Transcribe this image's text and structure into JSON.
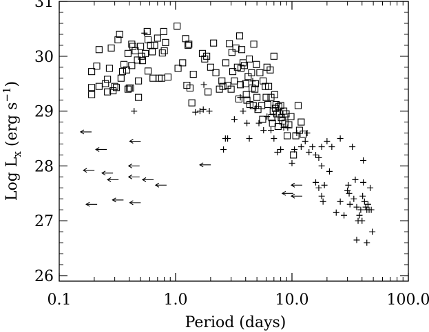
{
  "chart_data": {
    "type": "scatter",
    "title": "",
    "xlabel": "Period (days)",
    "ylabel_parts": {
      "main": "Log L",
      "sub": "x",
      "paren_open": " (erg s",
      "sup": "−1",
      "paren_close": ")"
    },
    "xscale": "log",
    "xlim": [
      0.1,
      100
    ],
    "ylim": [
      25.9,
      31.0
    ],
    "grid": false,
    "legend": "none",
    "xticks": [
      {
        "value": 0.1,
        "label": "0.1"
      },
      {
        "value": 1,
        "label": "1.0"
      },
      {
        "value": 10,
        "label": "10.0"
      },
      {
        "value": 100,
        "label": "100.0"
      }
    ],
    "yticks": [
      {
        "value": 26,
        "label": "26"
      },
      {
        "value": 27,
        "label": "27"
      },
      {
        "value": 28,
        "label": "28"
      },
      {
        "value": 29,
        "label": "29"
      },
      {
        "value": 30,
        "label": "30"
      },
      {
        "value": 31,
        "label": "31"
      }
    ],
    "series": [
      {
        "marker": "square",
        "points": [
          [
            0.19,
            29.43
          ],
          [
            0.19,
            29.72
          ],
          [
            0.19,
            29.3
          ],
          [
            0.21,
            29.82
          ],
          [
            0.22,
            30.12
          ],
          [
            0.22,
            29.45
          ],
          [
            0.25,
            29.5
          ],
          [
            0.26,
            29.35
          ],
          [
            0.26,
            29.58
          ],
          [
            0.27,
            29.78
          ],
          [
            0.28,
            30.15
          ],
          [
            0.29,
            29.37
          ],
          [
            0.3,
            29.45
          ],
          [
            0.31,
            29.43
          ],
          [
            0.32,
            30.3
          ],
          [
            0.33,
            30.4
          ],
          [
            0.34,
            29.6
          ],
          [
            0.35,
            29.72
          ],
          [
            0.36,
            29.85
          ],
          [
            0.38,
            29.75
          ],
          [
            0.39,
            30.05
          ],
          [
            0.39,
            29.4
          ],
          [
            0.4,
            29.42
          ],
          [
            0.41,
            29.42
          ],
          [
            0.42,
            29.83
          ],
          [
            0.42,
            30.22
          ],
          [
            0.43,
            30.18
          ],
          [
            0.45,
            30.1
          ],
          [
            0.47,
            29.93
          ],
          [
            0.48,
            29.25
          ],
          [
            0.48,
            29.55
          ],
          [
            0.5,
            30.18
          ],
          [
            0.51,
            30.0
          ],
          [
            0.52,
            29.92
          ],
          [
            0.55,
            30.05
          ],
          [
            0.57,
            30.45
          ],
          [
            0.58,
            30.3
          ],
          [
            0.58,
            29.73
          ],
          [
            0.61,
            30.2
          ],
          [
            0.63,
            30.08
          ],
          [
            0.64,
            29.6
          ],
          [
            0.66,
            30.2
          ],
          [
            0.7,
            30.33
          ],
          [
            0.72,
            29.6
          ],
          [
            0.76,
            29.6
          ],
          [
            0.77,
            30.06
          ],
          [
            0.79,
            30.45
          ],
          [
            0.8,
            30.1
          ],
          [
            0.82,
            30.25
          ],
          [
            0.86,
            29.62
          ],
          [
            1.03,
            30.55
          ],
          [
            1.05,
            29.78
          ],
          [
            1.15,
            29.88
          ],
          [
            1.22,
            30.32
          ],
          [
            1.25,
            29.47
          ],
          [
            1.28,
            30.2
          ],
          [
            1.3,
            30.22
          ],
          [
            1.33,
            29.42
          ],
          [
            1.38,
            29.15
          ],
          [
            1.42,
            29.67
          ],
          [
            1.7,
            30.05
          ],
          [
            1.78,
            29.95
          ],
          [
            1.85,
            30.0
          ],
          [
            1.9,
            29.35
          ],
          [
            2.0,
            29.8
          ],
          [
            2.12,
            30.24
          ],
          [
            2.22,
            29.7
          ],
          [
            2.38,
            29.4
          ],
          [
            2.5,
            29.55
          ],
          [
            2.55,
            29.45
          ],
          [
            2.7,
            29.88
          ],
          [
            2.8,
            29.47
          ],
          [
            2.9,
            30.23
          ],
          [
            3.0,
            29.4
          ],
          [
            3.05,
            30.07
          ],
          [
            3.1,
            29.72
          ],
          [
            3.2,
            29.55
          ],
          [
            3.3,
            30.15
          ],
          [
            3.4,
            29.8
          ],
          [
            3.5,
            29.22
          ],
          [
            3.55,
            30.37
          ],
          [
            3.6,
            29.48
          ],
          [
            3.65,
            29.78
          ],
          [
            3.7,
            30.12
          ],
          [
            3.8,
            29.88
          ],
          [
            3.9,
            29.83
          ],
          [
            4.0,
            29.5
          ],
          [
            4.05,
            29.3
          ],
          [
            4.1,
            29.2
          ],
          [
            4.2,
            29.63
          ],
          [
            4.3,
            29.95
          ],
          [
            4.35,
            29.12
          ],
          [
            4.5,
            29.7
          ],
          [
            4.55,
            29.42
          ],
          [
            4.65,
            29.1
          ],
          [
            4.7,
            30.22
          ],
          [
            4.8,
            29.4
          ],
          [
            4.85,
            29.5
          ],
          [
            4.95,
            29.85
          ],
          [
            5.0,
            29.25
          ],
          [
            5.1,
            29.03
          ],
          [
            5.3,
            29.7
          ],
          [
            5.5,
            29.1
          ],
          [
            5.6,
            28.85
          ],
          [
            5.65,
            29.55
          ],
          [
            5.9,
            29.45
          ],
          [
            6.0,
            29.25
          ],
          [
            6.1,
            29.8
          ],
          [
            6.2,
            29.12
          ],
          [
            6.3,
            29.45
          ],
          [
            6.5,
            29.75
          ],
          [
            6.6,
            29.25
          ],
          [
            6.7,
            28.88
          ],
          [
            6.8,
            28.78
          ],
          [
            6.9,
            29.0
          ],
          [
            7.0,
            30.0
          ],
          [
            7.1,
            29.3
          ],
          [
            7.2,
            29.05
          ],
          [
            7.3,
            29.12
          ],
          [
            7.4,
            28.95
          ],
          [
            7.6,
            28.72
          ],
          [
            7.7,
            29.08
          ],
          [
            7.8,
            28.95
          ],
          [
            8.0,
            29.1
          ],
          [
            8.1,
            28.88
          ],
          [
            8.3,
            28.82
          ],
          [
            8.5,
            29.0
          ],
          [
            8.7,
            28.78
          ],
          [
            8.9,
            28.95
          ],
          [
            9.1,
            28.55
          ],
          [
            9.4,
            28.75
          ],
          [
            9.8,
            28.9
          ],
          [
            10.3,
            28.2
          ],
          [
            10.8,
            28.55
          ],
          [
            11.3,
            29.1
          ],
          [
            11.6,
            28.65
          ],
          [
            12.0,
            28.8
          ],
          [
            12.5,
            28.58
          ]
        ]
      },
      {
        "marker": "plus",
        "points": [
          [
            0.44,
            29.0
          ],
          [
            0.54,
            30.42
          ],
          [
            1.48,
            28.98
          ],
          [
            1.62,
            29.0
          ],
          [
            1.73,
            29.03
          ],
          [
            1.95,
            29.0
          ],
          [
            1.75,
            29.48
          ],
          [
            2.58,
            28.3
          ],
          [
            2.68,
            28.5
          ],
          [
            2.8,
            28.5
          ],
          [
            3.2,
            28.85
          ],
          [
            3.6,
            29.25
          ],
          [
            3.8,
            29.0
          ],
          [
            4.1,
            28.78
          ],
          [
            4.3,
            28.5
          ],
          [
            4.6,
            29.55
          ],
          [
            4.9,
            29.05
          ],
          [
            5.2,
            28.78
          ],
          [
            5.7,
            28.65
          ],
          [
            6.1,
            28.9
          ],
          [
            6.6,
            28.65
          ],
          [
            7.0,
            28.5
          ],
          [
            7.5,
            28.25
          ],
          [
            8.0,
            28.3
          ],
          [
            8.5,
            28.7
          ],
          [
            9.2,
            28.7
          ],
          [
            10.0,
            28.05
          ],
          [
            10.5,
            28.3
          ],
          [
            11.0,
            28.6
          ],
          [
            12.0,
            28.35
          ],
          [
            13.0,
            28.45
          ],
          [
            14.0,
            28.25
          ],
          [
            15.0,
            28.35
          ],
          [
            16.0,
            28.2
          ],
          [
            17.0,
            28.15
          ],
          [
            18.0,
            28.35
          ],
          [
            20.0,
            28.45
          ],
          [
            22.0,
            28.35
          ],
          [
            26.0,
            28.5
          ],
          [
            16.0,
            27.7
          ],
          [
            17.0,
            27.6
          ],
          [
            18.0,
            27.45
          ],
          [
            18.5,
            27.35
          ],
          [
            19.0,
            27.65
          ],
          [
            21.0,
            27.9
          ],
          [
            24.0,
            27.15
          ],
          [
            26.0,
            27.35
          ],
          [
            28.0,
            27.1
          ],
          [
            30.0,
            27.55
          ],
          [
            30.5,
            27.65
          ],
          [
            31.0,
            27.5
          ],
          [
            31.5,
            27.3
          ],
          [
            33.0,
            28.35
          ],
          [
            34.0,
            27.4
          ],
          [
            35.0,
            27.75
          ],
          [
            36.0,
            27.25
          ],
          [
            37.0,
            27.0
          ],
          [
            38.0,
            27.1
          ],
          [
            39.0,
            27.2
          ],
          [
            40.0,
            27.0
          ],
          [
            40.5,
            27.45
          ],
          [
            41.0,
            27.7
          ],
          [
            42.0,
            27.35
          ],
          [
            43.0,
            27.25
          ],
          [
            44.0,
            27.2
          ],
          [
            45.0,
            27.3
          ],
          [
            46.0,
            27.2
          ],
          [
            47.0,
            27.6
          ],
          [
            48.0,
            27.2
          ],
          [
            49.0,
            26.8
          ],
          [
            36.0,
            26.65
          ],
          [
            44.0,
            26.6
          ],
          [
            41.0,
            28.1
          ],
          [
            18.0,
            28.0
          ],
          [
            13.5,
            28.6
          ]
        ]
      },
      {
        "marker": "left-arrow",
        "points": [
          [
            0.17,
            28.62
          ],
          [
            0.18,
            27.92
          ],
          [
            0.19,
            27.3
          ],
          [
            0.23,
            28.3
          ],
          [
            0.26,
            27.87
          ],
          [
            0.29,
            27.75
          ],
          [
            0.32,
            27.38
          ],
          [
            0.45,
            28.45
          ],
          [
            0.44,
            28.0
          ],
          [
            0.45,
            27.33
          ],
          [
            0.44,
            27.8
          ],
          [
            0.58,
            27.75
          ],
          [
            0.75,
            27.65
          ],
          [
            1.8,
            28.02
          ],
          [
            11.0,
            27.65
          ],
          [
            9.2,
            27.5
          ],
          [
            11.0,
            27.45
          ]
        ]
      }
    ]
  }
}
